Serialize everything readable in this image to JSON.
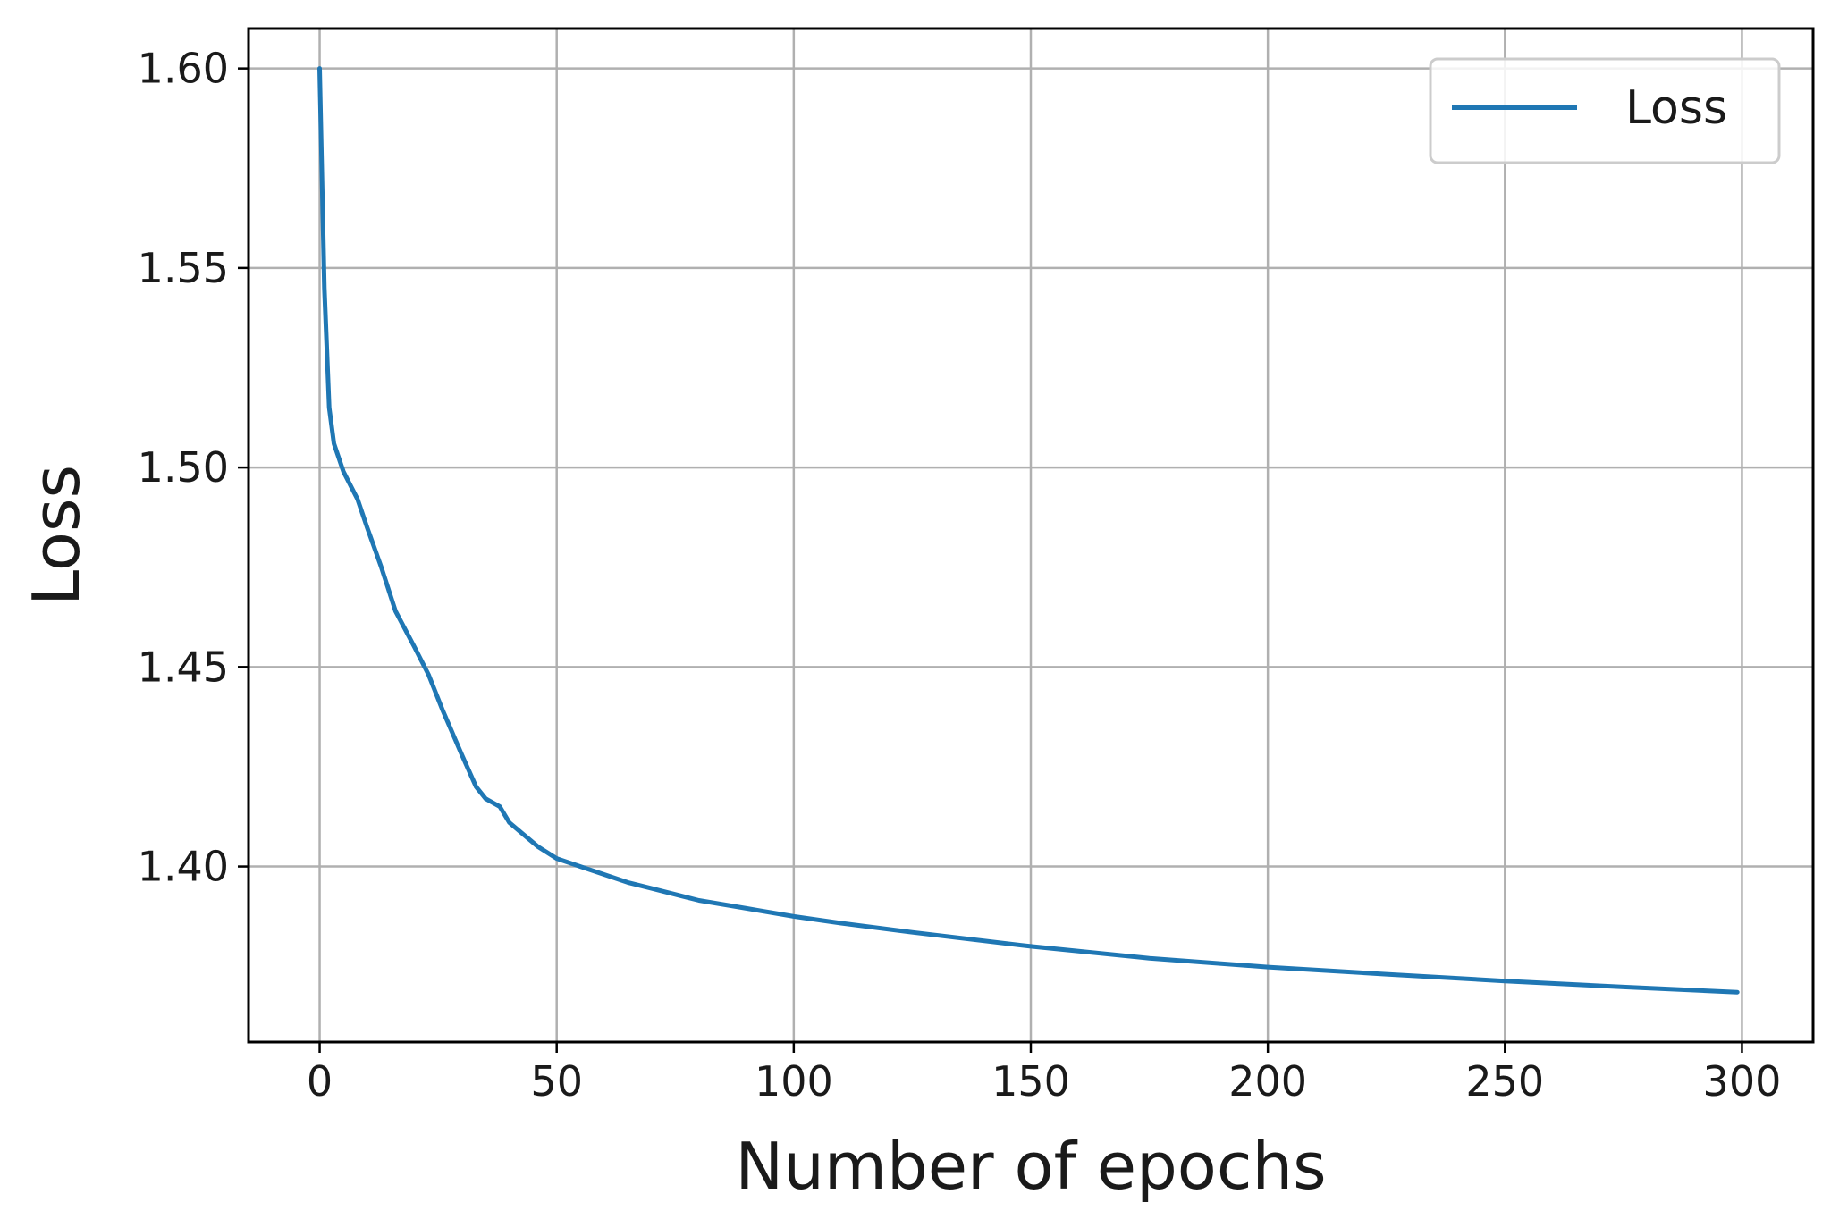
{
  "chart_data": {
    "type": "line",
    "title": "",
    "xlabel": "Number of epochs",
    "ylabel": "Loss",
    "xlim": [
      -15,
      315
    ],
    "ylim": [
      1.356,
      1.61
    ],
    "grid": true,
    "legend_position": "top-right",
    "x_ticks": [
      0,
      50,
      100,
      150,
      200,
      250,
      300
    ],
    "x_tick_labels": [
      "0",
      "50",
      "100",
      "150",
      "200",
      "250",
      "300"
    ],
    "y_ticks": [
      1.4,
      1.45,
      1.5,
      1.55,
      1.6
    ],
    "y_tick_labels": [
      "1.40",
      "1.45",
      "1.50",
      "1.55",
      "1.60"
    ],
    "series": [
      {
        "name": "Loss",
        "color": "#1f77b4",
        "x": [
          0,
          1,
          2,
          3,
          5,
          8,
          10,
          13,
          16,
          20,
          23,
          26,
          30,
          33,
          35,
          38,
          40,
          43,
          46,
          50,
          55,
          60,
          65,
          70,
          80,
          90,
          100,
          110,
          125,
          150,
          175,
          200,
          225,
          250,
          275,
          299
        ],
        "y": [
          1.6,
          1.545,
          1.515,
          1.506,
          1.499,
          1.492,
          1.485,
          1.475,
          1.464,
          1.455,
          1.448,
          1.439,
          1.428,
          1.42,
          1.417,
          1.415,
          1.411,
          1.408,
          1.405,
          1.402,
          1.4,
          1.398,
          1.396,
          1.3945,
          1.3915,
          1.3895,
          1.3875,
          1.3858,
          1.3835,
          1.38,
          1.377,
          1.3748,
          1.373,
          1.3713,
          1.3698,
          1.3685
        ]
      }
    ]
  }
}
